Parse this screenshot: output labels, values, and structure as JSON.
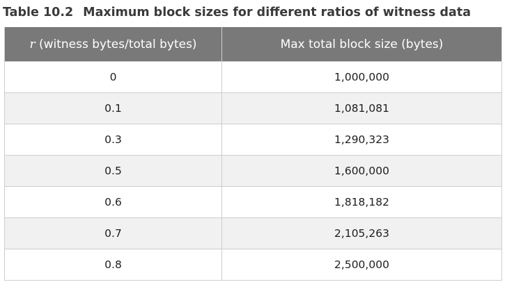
{
  "caption": {
    "number": "Table 10.2",
    "title": "Maximum block sizes for different ratios of witness data"
  },
  "table": {
    "headers": {
      "col1_var": "r",
      "col1_rest": " (witness bytes/total bytes)",
      "col2": "Max total block size (bytes)"
    },
    "rows": [
      {
        "r": "0",
        "max": "1,000,000"
      },
      {
        "r": "0.1",
        "max": "1,081,081"
      },
      {
        "r": "0.3",
        "max": "1,290,323"
      },
      {
        "r": "0.5",
        "max": "1,600,000"
      },
      {
        "r": "0.6",
        "max": "1,818,182"
      },
      {
        "r": "0.7",
        "max": "2,105,263"
      },
      {
        "r": "0.8",
        "max": "2,500,000"
      }
    ]
  }
}
